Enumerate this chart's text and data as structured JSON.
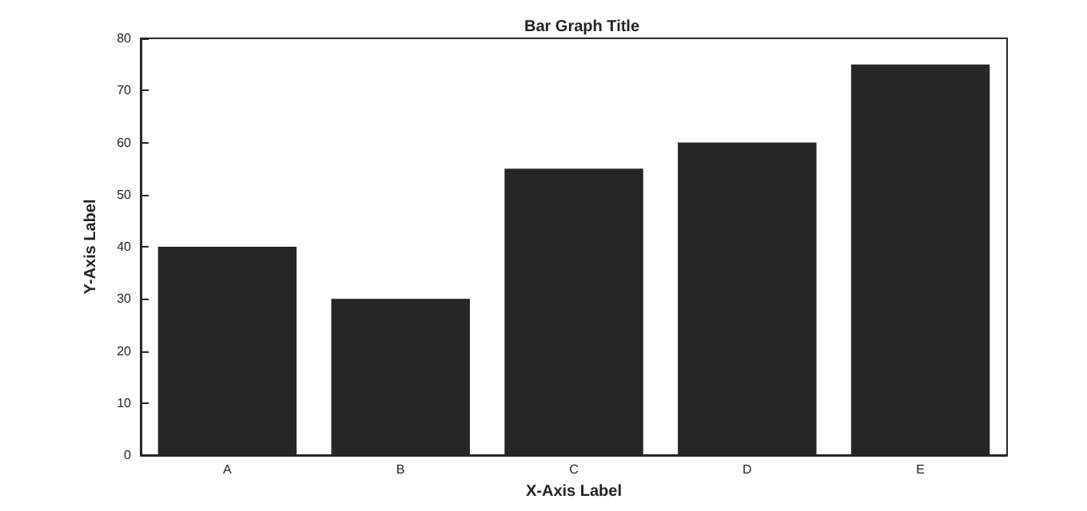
{
  "chart_data": {
    "type": "bar",
    "title": "Bar Graph Title",
    "xlabel": "X-Axis Label",
    "ylabel": "Y-Axis Label",
    "categories": [
      "A",
      "B",
      "C",
      "D",
      "E"
    ],
    "values": [
      40,
      30,
      55,
      60,
      75
    ],
    "color": "#262626",
    "ylim": [
      0,
      80
    ],
    "yticks": [
      0,
      10,
      20,
      30,
      40,
      50,
      60,
      70,
      80
    ],
    "grid": false
  }
}
